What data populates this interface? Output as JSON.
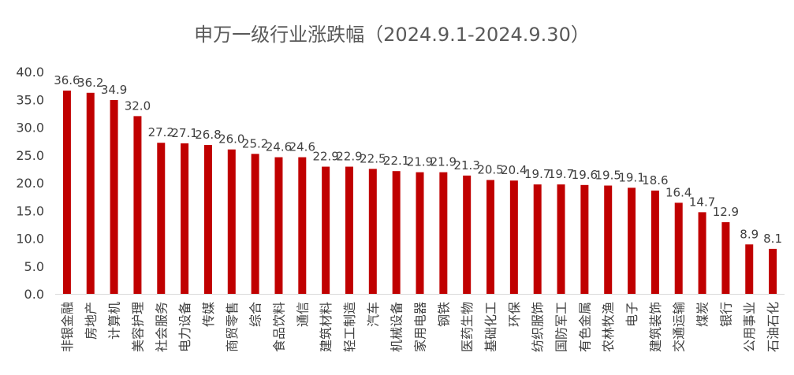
{
  "chart_data": {
    "type": "bar",
    "title": "申万一级行业涨跌幅（2024.9.1-2024.9.30）",
    "xlabel": "",
    "ylabel": "",
    "ylim": [
      0,
      40
    ],
    "yticks": [
      "0.0",
      "5.0",
      "10.0",
      "15.0",
      "20.0",
      "25.0",
      "30.0",
      "35.0",
      "40.0"
    ],
    "grid": false,
    "legend": "none",
    "bar_color": "#C00000",
    "categories": [
      "非银金融",
      "房地产",
      "计算机",
      "美容护理",
      "社会服务",
      "电力设备",
      "传媒",
      "商贸零售",
      "综合",
      "食品饮料",
      "通信",
      "建筑材料",
      "轻工制造",
      "汽车",
      "机械设备",
      "家用电器",
      "钢铁",
      "医药生物",
      "基础化工",
      "环保",
      "纺织服饰",
      "国防军工",
      "有色金属",
      "农林牧渔",
      "电子",
      "建筑装饰",
      "交通运输",
      "煤炭",
      "银行",
      "公用事业",
      "石油石化"
    ],
    "values": [
      36.6,
      36.2,
      34.9,
      32.0,
      27.2,
      27.1,
      26.8,
      26.0,
      25.2,
      24.6,
      24.6,
      22.9,
      22.9,
      22.5,
      22.1,
      21.9,
      21.9,
      21.3,
      20.5,
      20.4,
      19.7,
      19.7,
      19.6,
      19.5,
      19.1,
      18.6,
      16.4,
      14.7,
      12.9,
      8.9,
      8.1
    ],
    "value_labels": [
      "36.6",
      "36.2",
      "34.9",
      "32.0",
      "27.2",
      "27.1",
      "26.8",
      "26.0",
      "25.2",
      "24.6",
      "24.6",
      "22.9",
      "22.9",
      "22.5",
      "22.1",
      "21.9",
      "21.9",
      "21.3",
      "20.5",
      "20.4",
      "19.7",
      "19.7",
      "19.6",
      "19.5",
      "19.1",
      "18.6",
      "16.4",
      "14.7",
      "12.9",
      "8.9",
      "8.1"
    ]
  }
}
